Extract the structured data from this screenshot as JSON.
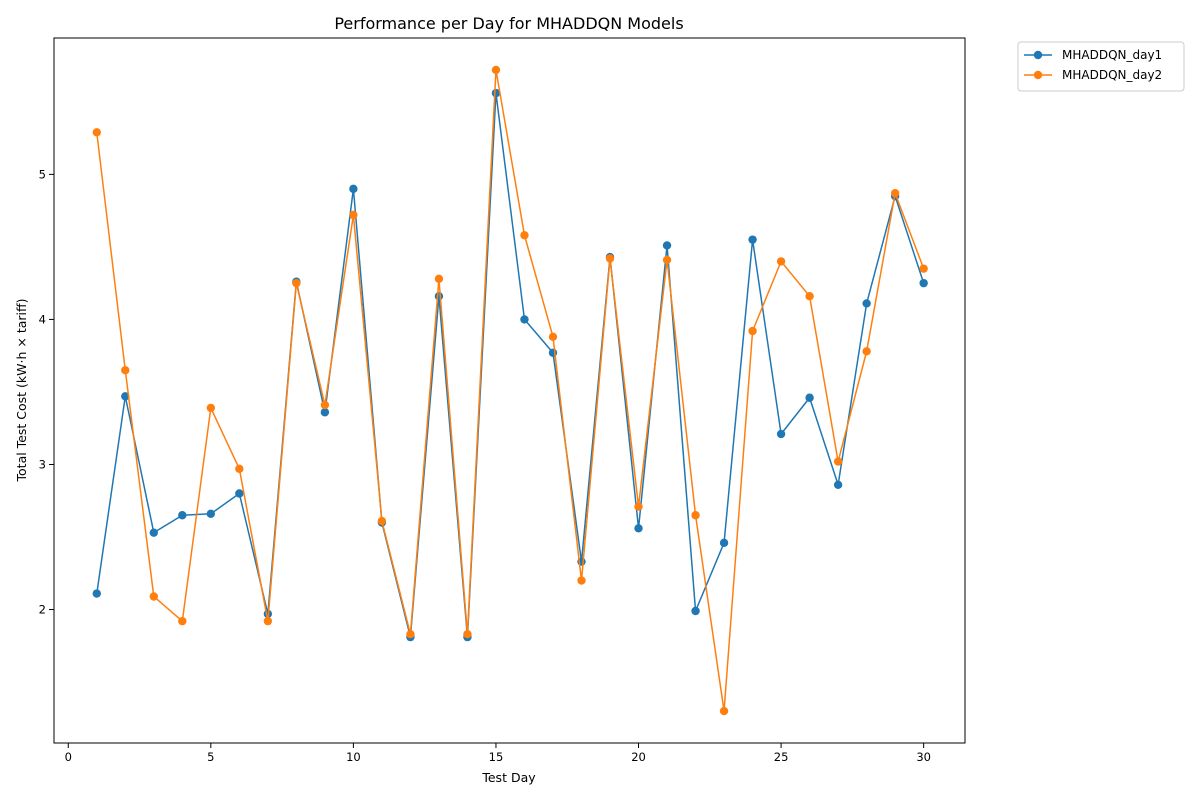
{
  "chart_data": {
    "type": "line",
    "title": "Performance per Day for MHADDQN Models",
    "xlabel": "Test Day",
    "ylabel": "Total Test Cost (kW·h × tariff)",
    "xlim": [
      -0.5,
      31.45
    ],
    "ylim": [
      1.08,
      5.94
    ],
    "xticks": [
      0,
      5,
      10,
      15,
      20,
      25,
      30
    ],
    "yticks": [
      2,
      3,
      4,
      5
    ],
    "grid": false,
    "legend_position": "outside top-right",
    "x": [
      1,
      2,
      3,
      4,
      5,
      6,
      7,
      8,
      9,
      10,
      11,
      12,
      13,
      14,
      15,
      16,
      17,
      18,
      19,
      20,
      21,
      22,
      23,
      24,
      25,
      26,
      27,
      28,
      29,
      30
    ],
    "series": [
      {
        "name": "MHADDQN_day1",
        "color": "#1f77b4",
        "values": [
          2.11,
          3.47,
          2.53,
          2.65,
          2.66,
          2.8,
          1.97,
          4.26,
          3.36,
          4.9,
          2.6,
          1.81,
          4.16,
          1.81,
          5.56,
          4.0,
          3.77,
          2.33,
          4.43,
          2.56,
          4.51,
          1.99,
          2.46,
          4.55,
          3.21,
          3.46,
          2.86,
          4.11,
          4.85,
          4.25
        ]
      },
      {
        "name": "MHADDQN_day2",
        "color": "#ff7f0e",
        "values": [
          5.29,
          3.65,
          2.09,
          1.92,
          3.39,
          2.97,
          1.92,
          4.25,
          3.41,
          4.72,
          2.61,
          1.83,
          4.28,
          1.83,
          5.72,
          4.58,
          3.88,
          2.2,
          4.42,
          2.71,
          4.41,
          2.65,
          1.3,
          3.92,
          4.4,
          4.16,
          3.02,
          3.78,
          4.87,
          4.35
        ]
      }
    ]
  }
}
